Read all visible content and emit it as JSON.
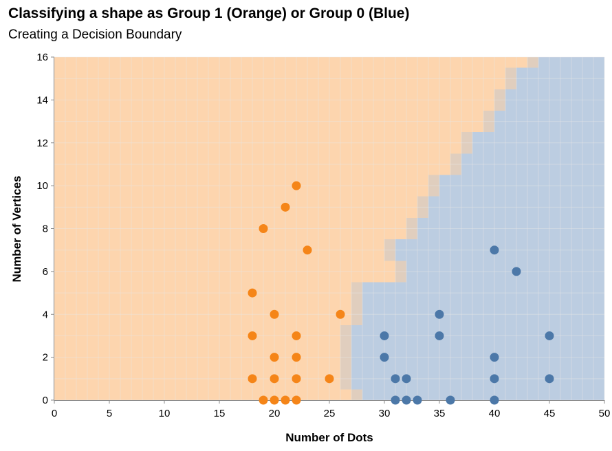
{
  "chart_data": {
    "type": "scatter",
    "title": "Classifying a shape as Group 1 (Orange) or Group 0 (Blue)",
    "subtitle": "Creating a Decision Boundary",
    "xlabel": "Number of Dots",
    "ylabel": "Number of Vertices",
    "xlim": [
      0,
      50
    ],
    "ylim": [
      0,
      16
    ],
    "x_ticks": [
      0,
      5,
      10,
      15,
      20,
      25,
      30,
      35,
      40,
      45,
      50
    ],
    "y_ticks": [
      0,
      2,
      4,
      6,
      8,
      10,
      12,
      14,
      16
    ],
    "grid": true,
    "colors": {
      "group1": "#f58518",
      "group0": "#4c78a8",
      "region1": "#fdd5ae",
      "region0": "#bccde1",
      "boundary": "#e0cebe",
      "grid": "#e6e6e6",
      "axis": "#888888"
    },
    "decision_boundary": {
      "description_rows": "for each vertex level y (0-16), the x band [lo, hi] where the boundary lies; x < lo is Group 1 region, x >= hi is Group 0 region",
      "rows": [
        {
          "y": 0,
          "lo": 27,
          "hi": 28
        },
        {
          "y": 1,
          "lo": 26,
          "hi": 27
        },
        {
          "y": 2,
          "lo": 26,
          "hi": 27
        },
        {
          "y": 3,
          "lo": 26,
          "hi": 27
        },
        {
          "y": 4,
          "lo": 27,
          "hi": 28
        },
        {
          "y": 5,
          "lo": 27,
          "hi": 28
        },
        {
          "y": 6,
          "lo": 31,
          "hi": 32
        },
        {
          "y": 7,
          "lo": 30,
          "hi": 31
        },
        {
          "y": 8,
          "lo": 32,
          "hi": 33
        },
        {
          "y": 9,
          "lo": 33,
          "hi": 34
        },
        {
          "y": 10,
          "lo": 34,
          "hi": 35
        },
        {
          "y": 11,
          "lo": 36,
          "hi": 37
        },
        {
          "y": 12,
          "lo": 37,
          "hi": 38
        },
        {
          "y": 13,
          "lo": 39,
          "hi": 40
        },
        {
          "y": 14,
          "lo": 40,
          "hi": 41
        },
        {
          "y": 15,
          "lo": 41,
          "hi": 42
        },
        {
          "y": 16,
          "lo": 43,
          "hi": 44
        }
      ]
    },
    "series": [
      {
        "group": "Group 1 (Orange)",
        "color": "#f58518",
        "points": [
          [
            19,
            0
          ],
          [
            20,
            0
          ],
          [
            21,
            0
          ],
          [
            22,
            0
          ],
          [
            18,
            1
          ],
          [
            20,
            1
          ],
          [
            22,
            1
          ],
          [
            25,
            1
          ],
          [
            20,
            2
          ],
          [
            22,
            2
          ],
          [
            18,
            3
          ],
          [
            22,
            3
          ],
          [
            20,
            4
          ],
          [
            26,
            4
          ],
          [
            18,
            5
          ],
          [
            23,
            7
          ],
          [
            19,
            8
          ],
          [
            21,
            9
          ],
          [
            22,
            10
          ]
        ]
      },
      {
        "group": "Group 0 (Blue)",
        "color": "#4c78a8",
        "points": [
          [
            31,
            0
          ],
          [
            32,
            0
          ],
          [
            33,
            0
          ],
          [
            36,
            0
          ],
          [
            40,
            0
          ],
          [
            31,
            1
          ],
          [
            32,
            1
          ],
          [
            40,
            1
          ],
          [
            45,
            1
          ],
          [
            30,
            2
          ],
          [
            40,
            2
          ],
          [
            30,
            3
          ],
          [
            35,
            3
          ],
          [
            45,
            3
          ],
          [
            35,
            4
          ],
          [
            42,
            6
          ],
          [
            40,
            7
          ]
        ]
      }
    ]
  }
}
